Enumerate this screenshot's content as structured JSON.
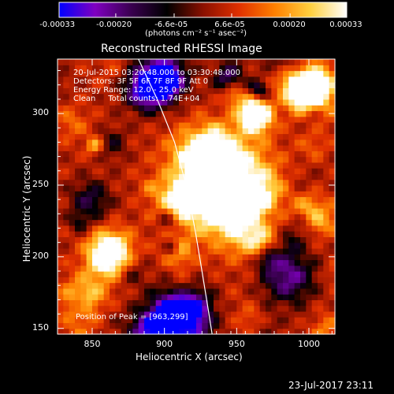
{
  "chart_data": {
    "type": "heatmap",
    "title": "Reconstructed RHESSI Image",
    "xlabel": "Heliocentric X (arcsec)",
    "ylabel": "Heliocentric Y (arcsec)",
    "xlim": [
      826,
      1018
    ],
    "ylim": [
      146,
      338
    ],
    "x_ticks": [
      850,
      900,
      950,
      1000
    ],
    "y_ticks": [
      150,
      200,
      250,
      300
    ],
    "x_tick_labels": [
      "850",
      "900",
      "950",
      "1000"
    ],
    "y_tick_labels": [
      "150",
      "200",
      "250",
      "300"
    ],
    "colorbar": {
      "range": [
        -0.00033,
        0.00033
      ],
      "tick_values": [
        -0.00033,
        -0.0002,
        -6.6e-05,
        6.6e-05,
        0.0002,
        0.00033
      ],
      "tick_labels": [
        "-0.00033",
        "-0.00020",
        "-6.6e-05",
        "6.6e-05",
        "0.00020",
        "0.00033"
      ],
      "unit_label": "(photons cm⁻² s⁻¹ asec⁻²)",
      "colormap": [
        "#0000ff",
        "#8000c0",
        "#3a0050",
        "#000000",
        "#8a1000",
        "#e03000",
        "#ff8000",
        "#ffd040",
        "#ffffff"
      ]
    },
    "peak": [
      963,
      299
    ],
    "limb_curve": {
      "x": [
        882,
        895,
        907,
        915,
        921,
        926,
        930,
        933
      ],
      "y": [
        338,
        310,
        280,
        250,
        220,
        190,
        165,
        146
      ]
    },
    "grid": false,
    "legend": "none"
  },
  "annotations": {
    "time_range": "20-Jul-2015 03:20:48.000 to 03:30:48.000",
    "detectors": "Detectors: 3F 5F 6F 7F 8F 9F Att 0",
    "energy": "Energy Range: 12.0 - 25.0 keV",
    "method": "Clean     Total counts: 1.74E+04",
    "peak_label": "Position of Peak = [963,299]"
  },
  "footer": {
    "timestamp": "23-Jul-2017 23:11"
  }
}
